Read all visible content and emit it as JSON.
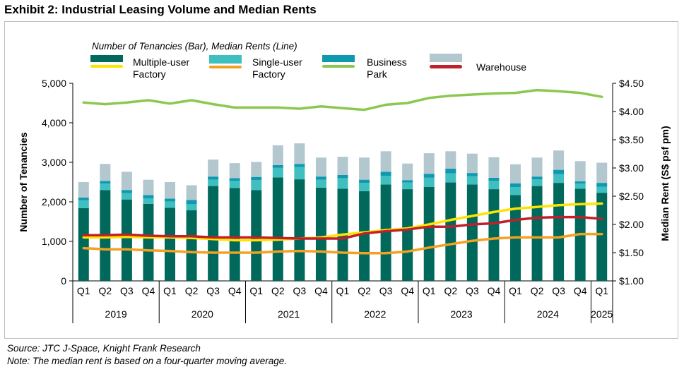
{
  "title": "Exhibit 2: Industrial Leasing Volume and Median Rents",
  "legend": {
    "caption": "Number of Tenancies (Bar), Median Rents (Line)",
    "items": [
      {
        "label_line1": "Multiple-user",
        "label_line2": "Factory",
        "bar_color": "#00695c",
        "line_color": "#ffe400"
      },
      {
        "label_line1": "Single-user",
        "label_line2": "Factory",
        "bar_color": "#3fbfbf",
        "line_color": "#f4a020"
      },
      {
        "label_line1": "Business",
        "label_line2": "Park",
        "bar_color": "#0f99b0",
        "line_color": "#8cc850"
      },
      {
        "label_line1": "",
        "label_line2": "Warehouse",
        "bar_color": "#b3c7ce",
        "line_color": "#c0202a"
      }
    ]
  },
  "footer": {
    "source": "Source: JTC J-Space, Knight Frank Research",
    "note": "Note: The median rent is based on a four-quarter moving average."
  },
  "chart_data": {
    "type": "bar",
    "ylabel": "Number of Tenancies",
    "y2label": "Median Rent (S$ psf pm)",
    "ylim": [
      0,
      5000
    ],
    "y2lim": [
      1.0,
      4.5
    ],
    "yticks": [
      "0",
      "1,000",
      "2,000",
      "3,000",
      "4,000",
      "5,000"
    ],
    "y2ticks": [
      "$1.00",
      "$1.50",
      "$2.00",
      "$2.50",
      "$3.00",
      "$3.50",
      "$4.00",
      "$4.50"
    ],
    "categories": [
      "Q1",
      "Q2",
      "Q3",
      "Q4",
      "Q1",
      "Q2",
      "Q3",
      "Q4",
      "Q1",
      "Q2",
      "Q3",
      "Q4",
      "Q1",
      "Q2",
      "Q3",
      "Q4",
      "Q1",
      "Q2",
      "Q3",
      "Q4",
      "Q1",
      "Q2",
      "Q3",
      "Q4",
      "Q1"
    ],
    "years": [
      {
        "label": "2019",
        "count": 4
      },
      {
        "label": "2020",
        "count": 4
      },
      {
        "label": "2021",
        "count": 4
      },
      {
        "label": "2022",
        "count": 4
      },
      {
        "label": "2023",
        "count": 4
      },
      {
        "label": "2024",
        "count": 4
      },
      {
        "label": "2025",
        "count": 1
      }
    ],
    "bar_series": [
      {
        "name": "Multiple-user Factory",
        "color": "#00695c",
        "values": [
          1840,
          2300,
          2060,
          1950,
          1850,
          1790,
          2400,
          2350,
          2300,
          2620,
          2570,
          2360,
          2330,
          2270,
          2440,
          2320,
          2380,
          2490,
          2440,
          2320,
          2170,
          2400,
          2480,
          2330,
          2230
        ]
      },
      {
        "name": "Single-user Factory",
        "color": "#3fbfbf",
        "values": [
          200,
          160,
          160,
          140,
          160,
          150,
          160,
          180,
          250,
          240,
          310,
          200,
          270,
          210,
          220,
          170,
          230,
          230,
          210,
          210,
          200,
          170,
          220,
          130,
          150
        ]
      },
      {
        "name": "Business Park",
        "color": "#0f99b0",
        "values": [
          70,
          70,
          80,
          80,
          70,
          110,
          80,
          70,
          80,
          70,
          80,
          80,
          80,
          80,
          100,
          60,
          100,
          120,
          80,
          80,
          100,
          70,
          110,
          60,
          100
        ]
      },
      {
        "name": "Warehouse",
        "color": "#b3c7ce",
        "values": [
          390,
          430,
          460,
          390,
          420,
          370,
          430,
          380,
          380,
          500,
          520,
          480,
          460,
          560,
          520,
          420,
          520,
          440,
          490,
          520,
          480,
          480,
          490,
          510,
          510
        ]
      }
    ],
    "line_series": [
      {
        "name": "Multiple-user Factory",
        "color": "#ffe400",
        "values": [
          1.77,
          1.77,
          1.78,
          1.77,
          1.77,
          1.76,
          1.74,
          1.72,
          1.72,
          1.73,
          1.75,
          1.77,
          1.82,
          1.86,
          1.9,
          1.93,
          2.0,
          2.08,
          2.15,
          2.22,
          2.28,
          2.31,
          2.34,
          2.36,
          2.37
        ]
      },
      {
        "name": "Single-user Factory",
        "color": "#f4a020",
        "values": [
          1.58,
          1.56,
          1.56,
          1.54,
          1.53,
          1.51,
          1.5,
          1.5,
          1.5,
          1.52,
          1.53,
          1.52,
          1.5,
          1.49,
          1.49,
          1.52,
          1.59,
          1.65,
          1.71,
          1.75,
          1.77,
          1.77,
          1.77,
          1.83,
          1.83
        ]
      },
      {
        "name": "Business Park",
        "color": "#8cc850",
        "values": [
          4.16,
          4.13,
          4.16,
          4.2,
          4.14,
          4.2,
          4.13,
          4.07,
          4.07,
          4.07,
          4.05,
          4.09,
          4.06,
          4.03,
          4.12,
          4.15,
          4.24,
          4.28,
          4.3,
          4.32,
          4.33,
          4.38,
          4.36,
          4.33,
          4.26
        ]
      },
      {
        "name": "Warehouse",
        "color": "#c0202a",
        "values": [
          1.81,
          1.81,
          1.82,
          1.8,
          1.79,
          1.79,
          1.77,
          1.77,
          1.77,
          1.76,
          1.75,
          1.75,
          1.75,
          1.84,
          1.88,
          1.91,
          1.96,
          1.96,
          2.0,
          2.02,
          2.08,
          2.12,
          2.13,
          2.13,
          2.1
        ]
      }
    ]
  }
}
